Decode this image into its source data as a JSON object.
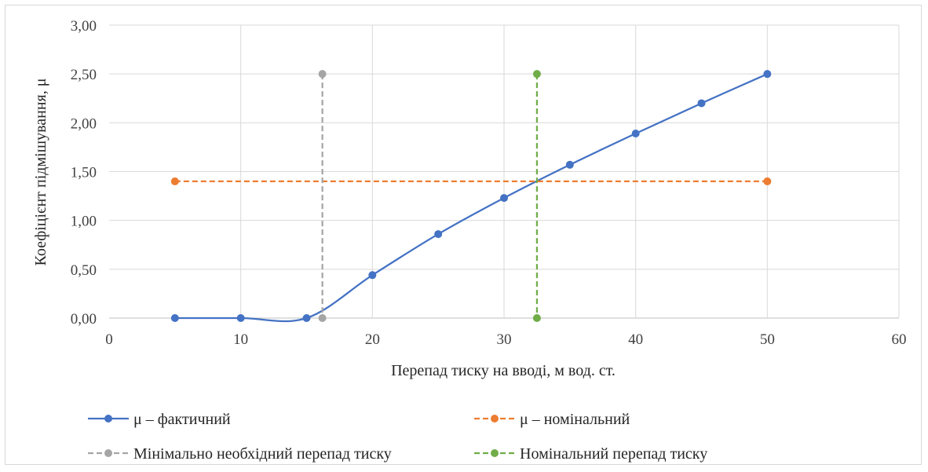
{
  "chart_data": {
    "type": "scatter",
    "xlabel": "Перепад тиску на вводі, м вод. ст.",
    "ylabel": "Коефіцієнт підмішування, μ",
    "xlim": [
      0,
      60
    ],
    "ylim": [
      0,
      3
    ],
    "x_ticks": [
      "0",
      "10",
      "20",
      "30",
      "40",
      "50",
      "60"
    ],
    "y_ticks": [
      "0,00",
      "0,50",
      "1,00",
      "1,50",
      "2,00",
      "2,50",
      "3,00"
    ],
    "grid": true,
    "legend_position": "bottom",
    "series": [
      {
        "name": "μ – фактичний",
        "color": "#4472c4",
        "dash": "solid",
        "smooth": true,
        "points": [
          [
            5,
            0.0
          ],
          [
            10,
            0.0
          ],
          [
            15,
            0.0
          ],
          [
            20,
            0.44
          ],
          [
            25,
            0.86
          ],
          [
            30,
            1.23
          ],
          [
            35,
            1.57
          ],
          [
            40,
            1.89
          ],
          [
            45,
            2.2
          ],
          [
            50,
            2.5
          ]
        ]
      },
      {
        "name": "μ – номінальний",
        "color": "#ed7d31",
        "dash": "dashed",
        "smooth": false,
        "points": [
          [
            5,
            1.4
          ],
          [
            50,
            1.4
          ]
        ]
      },
      {
        "name": "Мінімально необхідний перепад тиску",
        "color": "#a5a5a5",
        "dash": "dashed",
        "smooth": false,
        "points": [
          [
            16.2,
            2.5
          ],
          [
            16.2,
            0.0
          ]
        ]
      },
      {
        "name": "Номінальний перепад тиску",
        "color": "#70ad47",
        "dash": "dashed",
        "smooth": false,
        "points": [
          [
            32.5,
            2.5
          ],
          [
            32.5,
            0.0
          ]
        ]
      }
    ]
  }
}
